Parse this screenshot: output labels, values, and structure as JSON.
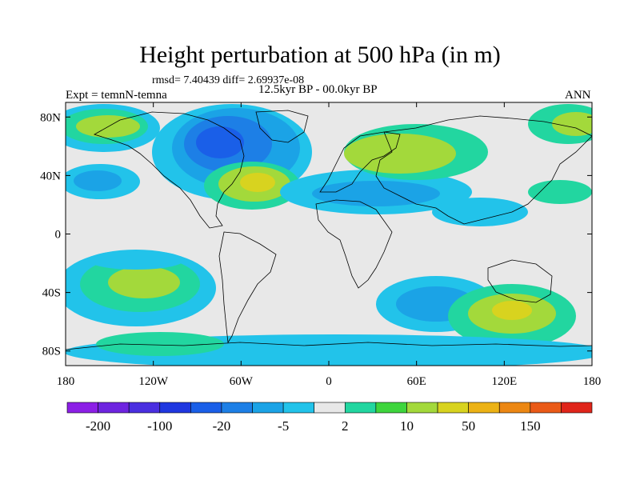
{
  "title": "Height perturbation at 500 hPa (in m)",
  "stats_text": "rmsd= 7.40439 diff= 2.69937e-08",
  "left_label": "Expt = temnN-temna",
  "center_label": "12.5kyr BP - 00.0kyr BP",
  "right_label": "ANN",
  "chart_data": {
    "type": "heatmap",
    "title": "Height perturbation at 500 hPa (in m)",
    "variable": "500 hPa geopotential height difference",
    "units": "m",
    "x_axis": {
      "range": [
        -180,
        180
      ],
      "ticks": [
        -180,
        -120,
        -60,
        0,
        60,
        120,
        180
      ],
      "tick_labels": [
        "180",
        "120W",
        "60W",
        "0",
        "60E",
        "120E",
        "180"
      ]
    },
    "y_axis": {
      "range": [
        -90,
        90
      ],
      "ticks": [
        80,
        40,
        0,
        -40,
        -80
      ],
      "tick_labels": [
        "80N",
        "40N",
        "0",
        "40S",
        "80S"
      ]
    },
    "colorbar": {
      "tick_labels": [
        "-200",
        "-100",
        "-20",
        "-5",
        "2",
        "10",
        "50",
        "150"
      ],
      "colors": [
        "#8c1fe6",
        "#6e24e0",
        "#4a2fe0",
        "#1f37e0",
        "#1a5fe8",
        "#1d7fe6",
        "#1ba3e6",
        "#22c3ea",
        "#e8e8e8",
        "#22d6a0",
        "#3ed53d",
        "#a3d93b",
        "#d8d31f",
        "#ecb215",
        "#ec8713",
        "#ea5a17",
        "#e0251a"
      ]
    },
    "anomaly_regions": [
      {
        "name": "North Pacific positive",
        "lon_range": [
          -180,
          -140
        ],
        "lat_range": [
          48,
          88
        ],
        "approx_value_m": 30
      },
      {
        "name": "North America negative",
        "lon_range": [
          -150,
          -40
        ],
        "lat_range": [
          40,
          90
        ],
        "approx_value_m": -60
      },
      {
        "name": "Western North Atlantic positive",
        "lon_range": [
          -100,
          -50
        ],
        "lat_range": [
          20,
          55
        ],
        "approx_value_m": 40
      },
      {
        "name": "Eurasia positive",
        "lon_range": [
          10,
          120
        ],
        "lat_range": [
          40,
          75
        ],
        "approx_value_m": 25
      },
      {
        "name": "Northern midlatitude negative band",
        "lon_range": [
          -40,
          100
        ],
        "lat_range": [
          15,
          45
        ],
        "approx_value_m": -6
      },
      {
        "name": "South Pacific positive",
        "lon_range": [
          -170,
          -110
        ],
        "lat_range": [
          -65,
          -25
        ],
        "approx_value_m": 30
      },
      {
        "name": "South Indian Ocean negative",
        "lon_range": [
          40,
          100
        ],
        "lat_range": [
          -70,
          -35
        ],
        "approx_value_m": -15
      },
      {
        "name": "Australian sector positive",
        "lon_range": [
          90,
          170
        ],
        "lat_range": [
          -70,
          -30
        ],
        "approx_value_m": 40
      },
      {
        "name": "Antarctic negative",
        "lon_range": [
          -180,
          180
        ],
        "lat_range": [
          -90,
          -75
        ],
        "approx_value_m": -10
      }
    ]
  }
}
